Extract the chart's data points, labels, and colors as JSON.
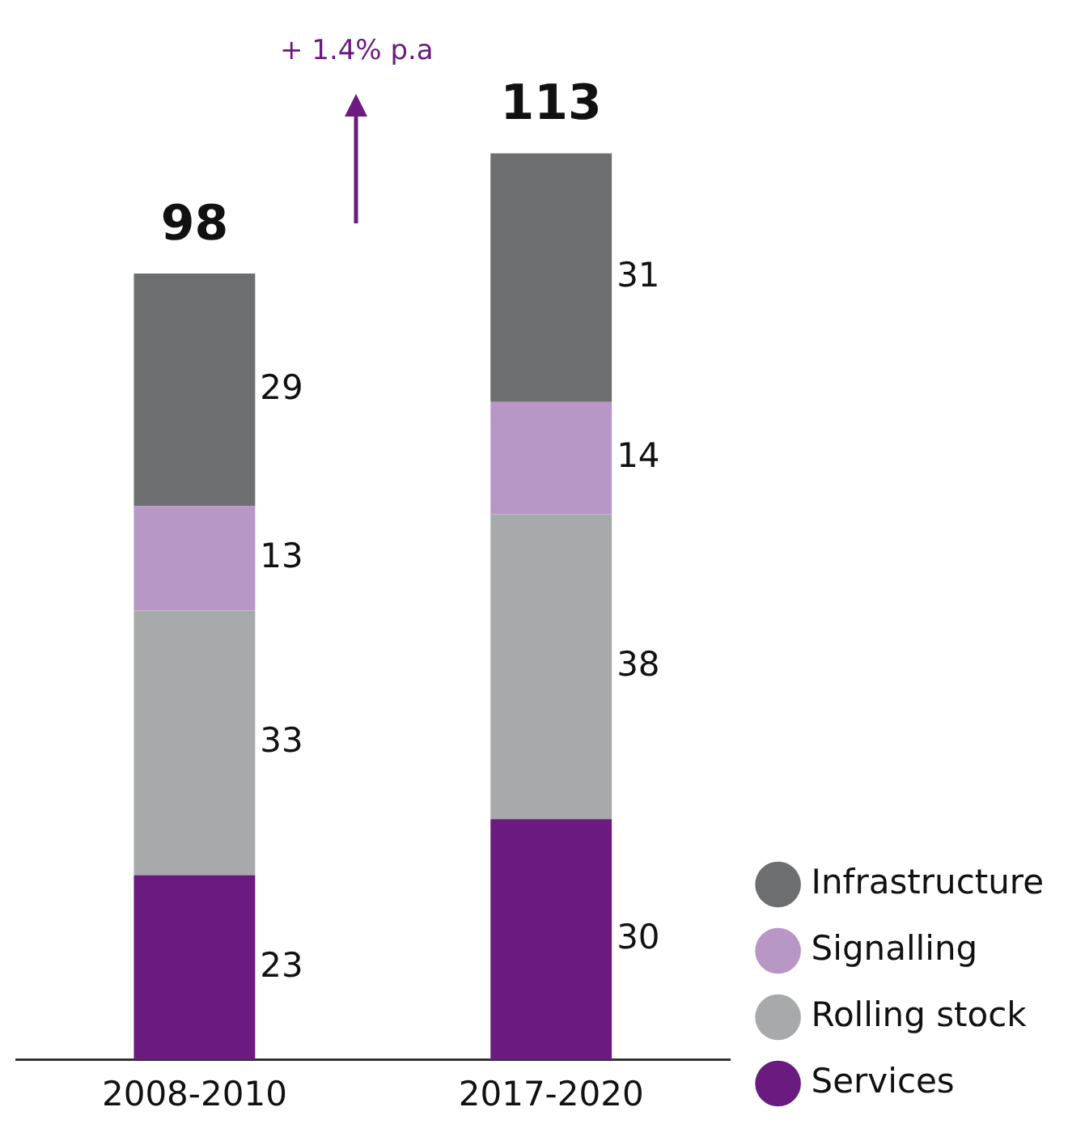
{
  "chart_data": {
    "type": "bar",
    "stacked": true,
    "categories": [
      "2008-2010",
      "2017-2020"
    ],
    "series": [
      {
        "name": "Services",
        "color": "#6b1a7f",
        "values": [
          23,
          30
        ]
      },
      {
        "name": "Rolling stock",
        "color": "#a7a9ab",
        "values": [
          33,
          38
        ]
      },
      {
        "name": "Signalling",
        "color": "#b896c6",
        "values": [
          13,
          14
        ]
      },
      {
        "name": "Infrastructure",
        "color": "#6d6e70",
        "values": [
          29,
          31
        ]
      }
    ],
    "data_labels": true,
    "totals": [
      "98",
      "113"
    ],
    "annotations": [
      "+ 1.4% p.a"
    ],
    "legend": "bottom right",
    "grid": false
  }
}
